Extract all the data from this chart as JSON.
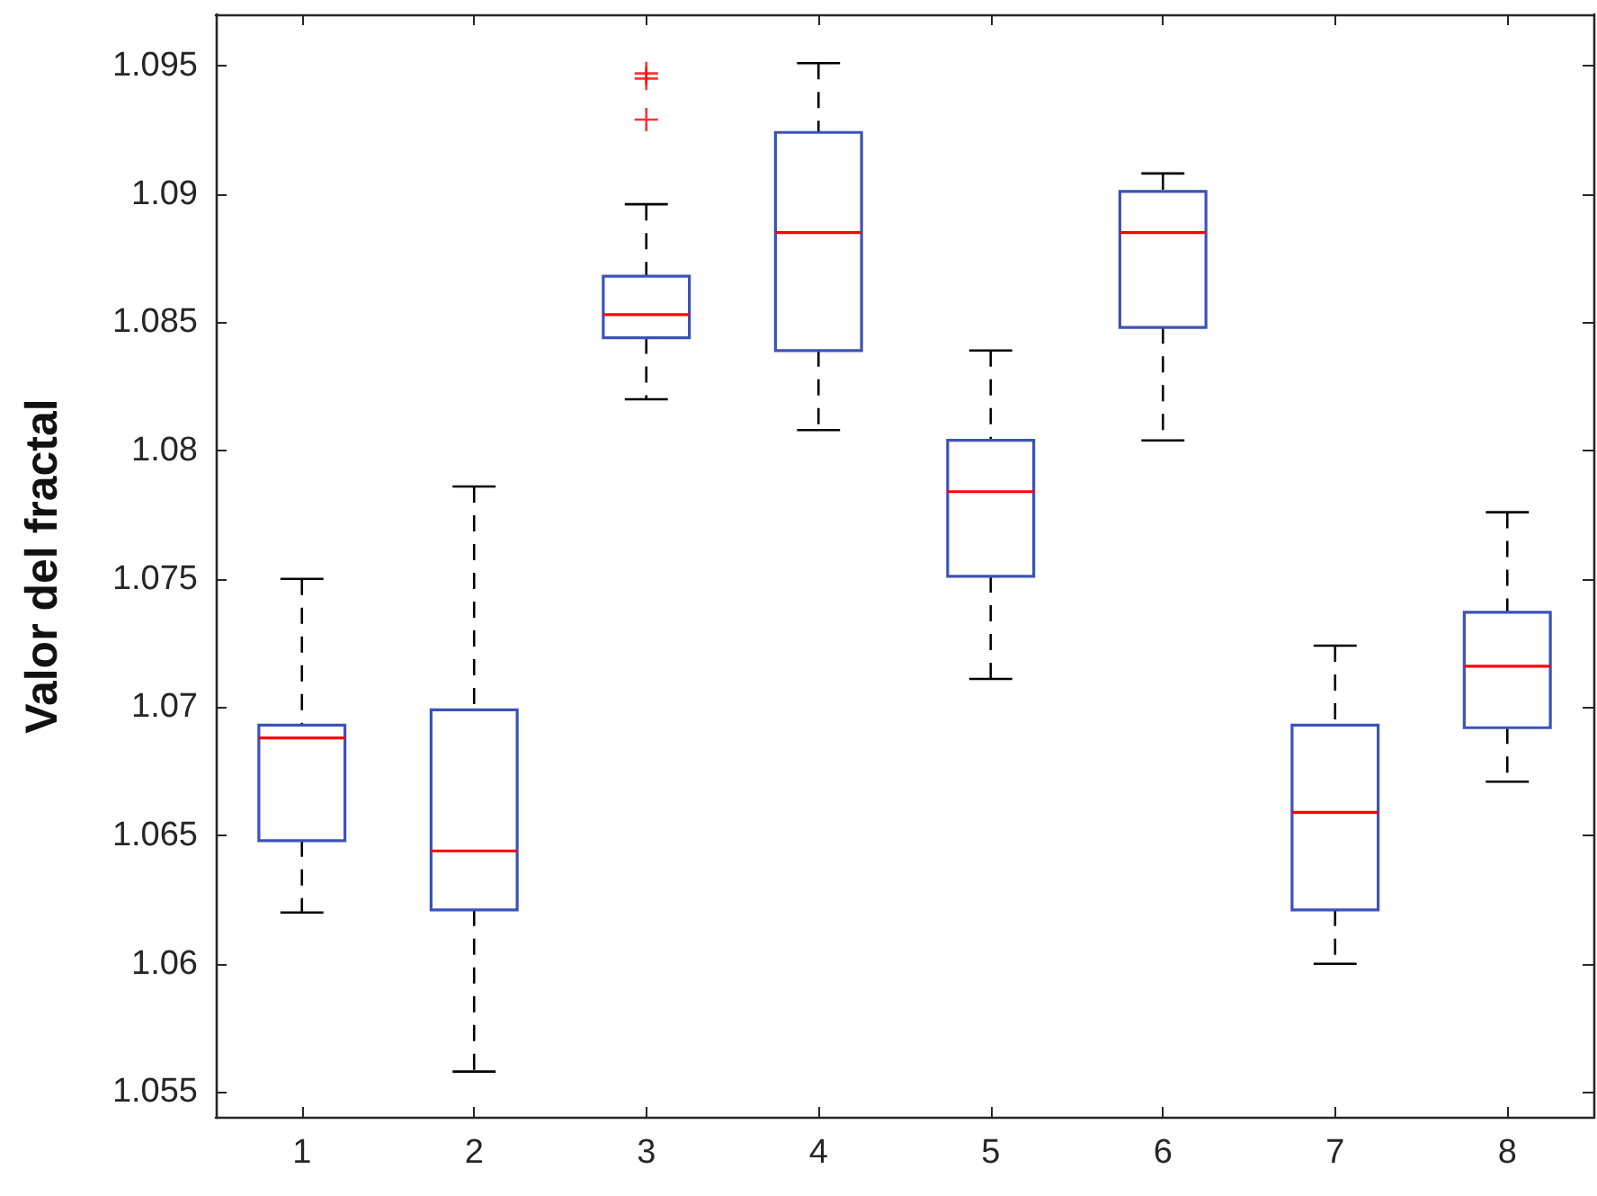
{
  "chart_data": {
    "type": "box",
    "ylabel": "Valor del fractal",
    "categories": [
      "1",
      "2",
      "3",
      "4",
      "5",
      "6",
      "7",
      "8"
    ],
    "series": [
      {
        "color": "#3b53b7",
        "boxes": [
          {
            "low": 1.062,
            "q1": 1.0648,
            "median": 1.0688,
            "q3": 1.0693,
            "high": 1.075
          },
          {
            "low": 1.0558,
            "q1": 1.0621,
            "median": 1.0644,
            "q3": 1.0699,
            "high": 1.0786
          },
          {
            "low": 1.082,
            "q1": 1.0844,
            "median": 1.0853,
            "q3": 1.0868,
            "high": 1.0896,
            "outliers": [
              1.0947,
              1.0945,
              1.0929
            ]
          },
          {
            "low": 1.0808,
            "q1": 1.0839,
            "median": 1.0885,
            "q3": 1.0924,
            "high": 1.0951
          },
          {
            "low": 1.0711,
            "q1": 1.0751,
            "median": 1.0784,
            "q3": 1.0804,
            "high": 1.0839
          },
          {
            "low": 1.0804,
            "q1": 1.0848,
            "median": 1.0885,
            "q3": 1.0901,
            "high": 1.0908
          },
          {
            "low": 1.06,
            "q1": 1.0621,
            "median": 1.0659,
            "q3": 1.0693,
            "high": 1.0724
          },
          {
            "low": 1.0671,
            "q1": 1.0692,
            "median": 1.0716,
            "q3": 1.0737,
            "high": 1.0776
          }
        ]
      }
    ],
    "ylim": [
      1.054,
      1.097
    ],
    "yticks": [
      1.055,
      1.06,
      1.065,
      1.07,
      1.075,
      1.08,
      1.085,
      1.09,
      1.095
    ],
    "marker": "cross"
  }
}
